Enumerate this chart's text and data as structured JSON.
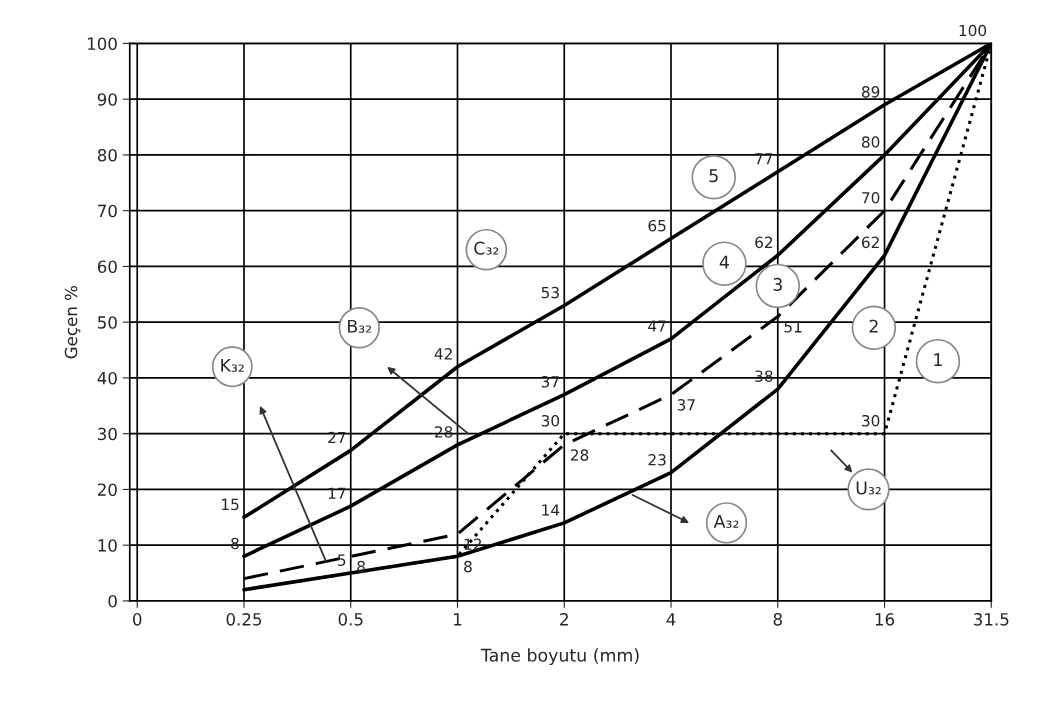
{
  "chart_data": {
    "type": "line",
    "xlabel": "Tane boyutu (mm)",
    "ylabel": "Geçen %",
    "categories": [
      "0",
      "0.25",
      "0.5",
      "1",
      "2",
      "4",
      "8",
      "16",
      "31.5"
    ],
    "series": [
      {
        "name": "5",
        "color": "#000000",
        "line_style": "solid",
        "values": [
          null,
          15,
          27,
          42,
          53,
          65,
          77,
          89,
          100
        ],
        "value_labels": [
          null,
          "15",
          "27",
          "42",
          "53",
          "65",
          "77",
          "89",
          "100"
        ]
      },
      {
        "name": "4",
        "color": "#000000",
        "line_style": "solid",
        "values": [
          null,
          8,
          17,
          28,
          37,
          47,
          62,
          80,
          100
        ],
        "value_labels": [
          null,
          "8",
          "17",
          "28",
          "37",
          "47",
          "62",
          "80",
          null
        ]
      },
      {
        "name": "3",
        "color": "#000000",
        "line_style": "dashed",
        "values": [
          null,
          4,
          8,
          12,
          28,
          37,
          51,
          70,
          100
        ],
        "value_labels": [
          null,
          null,
          "8",
          "12",
          "28",
          "37",
          "51",
          "70",
          null
        ]
      },
      {
        "name": "2",
        "color": "#000000",
        "line_style": "solid",
        "values": [
          null,
          2,
          5,
          8,
          14,
          23,
          38,
          62,
          100
        ],
        "value_labels": [
          null,
          null,
          "5",
          "8",
          "14",
          "23",
          "38",
          "62",
          null
        ]
      },
      {
        "name": "1",
        "color": "#000000",
        "line_style": "dotted",
        "values": [
          null,
          2,
          5,
          8,
          30,
          30,
          30,
          30,
          100
        ],
        "value_labels": [
          null,
          null,
          null,
          null,
          "30",
          null,
          null,
          "30",
          null
        ]
      }
    ],
    "annotations": [
      "C₃₂",
      "B₃₂",
      "K₃₂",
      "A₃₂",
      "U₃₂"
    ],
    "ylim": [
      0,
      100
    ],
    "yticks": [
      0,
      10,
      20,
      30,
      40,
      50,
      60,
      70,
      80,
      90,
      100
    ],
    "grid": true,
    "marker": "none"
  }
}
